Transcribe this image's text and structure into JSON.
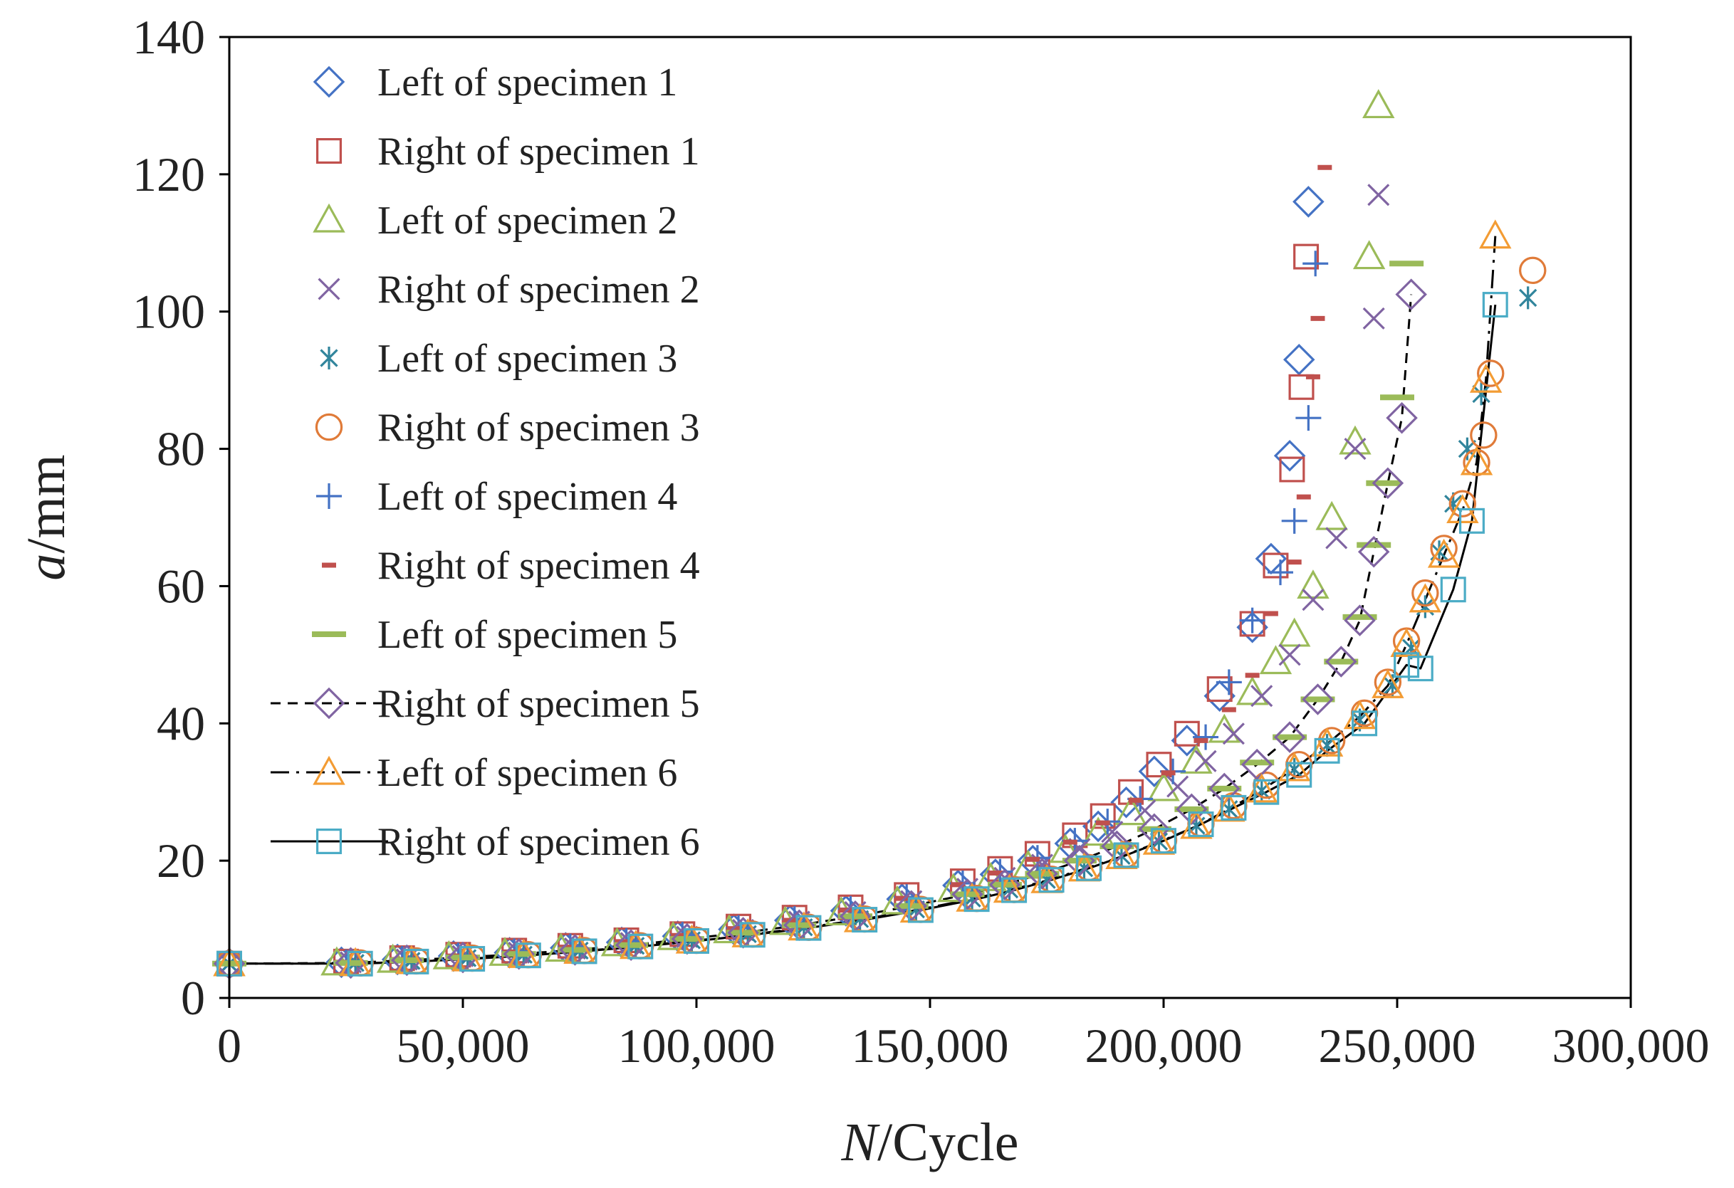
{
  "chart_data": {
    "type": "scatter",
    "title": "",
    "xlabel_italic": "N",
    "xlabel_rest": "/Cycle",
    "ylabel_italic": "a",
    "ylabel_rest": "/mm",
    "xlim": [
      0,
      300000
    ],
    "ylim": [
      0,
      140
    ],
    "xticks": [
      0,
      50000,
      100000,
      150000,
      200000,
      250000,
      300000
    ],
    "xtick_labels": [
      "0",
      "50,000",
      "100,000",
      "150,000",
      "200,000",
      "250,000",
      "300,000"
    ],
    "yticks": [
      0,
      20,
      40,
      60,
      80,
      100,
      120,
      140
    ],
    "ytick_labels": [
      "0",
      "20",
      "40",
      "60",
      "80",
      "100",
      "120",
      "140"
    ],
    "grid": false,
    "legend_position": "top-left",
    "series": [
      {
        "name": "Left of specimen 1",
        "marker": "diamond",
        "color": "#4472C4",
        "line": "none",
        "x": [
          0,
          24000,
          36000,
          48000,
          60000,
          72000,
          84000,
          96000,
          108000,
          120000,
          132000,
          144000,
          156000,
          164000,
          172000,
          180000,
          186000,
          192000,
          198000,
          205000,
          212000,
          219000,
          223000,
          227000,
          229000,
          231000
        ],
        "y": [
          5,
          5.2,
          5.6,
          6.1,
          6.6,
          7.3,
          8.1,
          9,
          10,
          11.3,
          12.7,
          14.4,
          16.4,
          18,
          20,
          22.5,
          25,
          28.5,
          33,
          37.5,
          44,
          54,
          64,
          79,
          93,
          116
        ]
      },
      {
        "name": "Right of specimen 1",
        "marker": "square",
        "color": "#C0504D",
        "line": "none",
        "x": [
          0,
          25000,
          37000,
          49000,
          61000,
          73000,
          85000,
          97000,
          109000,
          121000,
          133000,
          145000,
          157000,
          165000,
          173000,
          181000,
          187000,
          193000,
          199000,
          205000,
          212000,
          219000,
          224000,
          227500,
          229500,
          230500
        ],
        "y": [
          5,
          5.3,
          5.8,
          6.3,
          6.9,
          7.6,
          8.4,
          9.3,
          10.4,
          11.7,
          13.2,
          15,
          17,
          18.8,
          21,
          23.7,
          26.5,
          30,
          34,
          38.5,
          45,
          54.5,
          63,
          77,
          89,
          108
        ]
      },
      {
        "name": "Left of specimen 2",
        "marker": "triangle",
        "color": "#9BBB59",
        "line": "none",
        "x": [
          0,
          23000,
          35000,
          47000,
          59000,
          71000,
          83000,
          95000,
          107000,
          119000,
          131000,
          143000,
          155000,
          163000,
          171000,
          179000,
          186000,
          193000,
          200000,
          207000,
          213000,
          219000,
          224000,
          228000,
          232000,
          236000,
          241000,
          244000,
          246000
        ],
        "y": [
          5,
          5.1,
          5.5,
          6,
          6.5,
          7.1,
          7.9,
          8.8,
          9.8,
          11,
          12.4,
          14,
          15.8,
          17.4,
          19.2,
          21.5,
          24,
          27,
          30.5,
          34.5,
          39,
          44.5,
          49,
          53,
          60,
          70,
          81,
          108,
          130
        ]
      },
      {
        "name": "Right of specimen 2",
        "marker": "x",
        "color": "#8064A2",
        "line": "none",
        "x": [
          0,
          26000,
          38000,
          50000,
          62000,
          74000,
          86000,
          98000,
          110000,
          122000,
          134000,
          146000,
          158000,
          166000,
          174000,
          182000,
          189000,
          196000,
          203000,
          209000,
          215000,
          221000,
          227000,
          232000,
          237000,
          241000,
          245000,
          246000
        ],
        "y": [
          5,
          5.2,
          5.6,
          6.1,
          6.6,
          7.2,
          8,
          8.9,
          9.9,
          11.1,
          12.5,
          14.1,
          15.9,
          17.5,
          19.4,
          21.7,
          24.2,
          27.3,
          30.8,
          34.5,
          38.5,
          44,
          50,
          58,
          67,
          80,
          99,
          117
        ]
      },
      {
        "name": "Left of specimen 3",
        "marker": "asterisk",
        "color": "#31859C",
        "line": "none",
        "x": [
          0,
          27000,
          39000,
          51000,
          63000,
          75000,
          87000,
          99000,
          111000,
          123000,
          135000,
          147000,
          159000,
          167000,
          175000,
          183000,
          191000,
          199000,
          207000,
          214000,
          221000,
          228000,
          235000,
          242000,
          249000,
          253000,
          256000,
          259000,
          262000,
          265000,
          268000,
          278000
        ],
        "y": [
          5,
          5.1,
          5.4,
          5.8,
          6.3,
          6.9,
          7.6,
          8.4,
          9.3,
          10.3,
          11.5,
          12.9,
          14.5,
          15.8,
          17.2,
          18.9,
          20.7,
          22.8,
          25.1,
          27.5,
          30.2,
          33.3,
          36.8,
          40.5,
          45.5,
          51,
          57,
          65,
          72,
          80,
          88,
          102
        ]
      },
      {
        "name": "Right of specimen 3",
        "marker": "circle",
        "color": "#E07B39",
        "line": "none",
        "x": [
          0,
          28000,
          40000,
          52000,
          64000,
          76000,
          88000,
          100000,
          112000,
          124000,
          136000,
          148000,
          160000,
          168000,
          176000,
          184000,
          192000,
          200000,
          208000,
          215000,
          222000,
          229000,
          236000,
          243000,
          248000,
          252000,
          256000,
          260000,
          264000,
          267000,
          268500,
          270000,
          279000
        ],
        "y": [
          5,
          5.1,
          5.4,
          5.8,
          6.3,
          6.9,
          7.6,
          8.4,
          9.3,
          10.3,
          11.5,
          12.9,
          14.5,
          15.8,
          17.3,
          19,
          20.9,
          23,
          25.4,
          28,
          31,
          34,
          37.5,
          41.5,
          46,
          52,
          59,
          65.5,
          72,
          78,
          82,
          91,
          106
        ]
      },
      {
        "name": "Left of specimen 4",
        "marker": "plus",
        "color": "#4472C4",
        "line": "none",
        "x": [
          0,
          25000,
          37000,
          49000,
          61000,
          73000,
          85000,
          97000,
          109000,
          121000,
          133000,
          145000,
          157000,
          165000,
          173000,
          181000,
          188000,
          195000,
          202000,
          209000,
          214000,
          219000,
          225000,
          228000,
          231000,
          232500
        ],
        "y": [
          5,
          5.2,
          5.7,
          6.2,
          6.8,
          7.5,
          8.3,
          9.2,
          10.2,
          11.5,
          13,
          14.7,
          16.7,
          18.4,
          20.4,
          22.9,
          25.7,
          29,
          33,
          38,
          46,
          55,
          62,
          69.5,
          84.5,
          107
        ]
      },
      {
        "name": "Right of specimen 4",
        "marker": "dash-short",
        "color": "#C0504D",
        "line": "none",
        "x": [
          0,
          24000,
          36000,
          48000,
          60000,
          72000,
          84000,
          96000,
          108000,
          120000,
          132000,
          144000,
          156000,
          164000,
          172000,
          180000,
          187000,
          194000,
          201000,
          208000,
          214000,
          219000,
          223000,
          228000,
          230000,
          232000,
          233000,
          234500
        ],
        "y": [
          5,
          5.2,
          5.6,
          6.1,
          6.7,
          7.4,
          8.2,
          9.1,
          10.1,
          11.3,
          12.8,
          14.5,
          16.5,
          18.2,
          20.2,
          22.7,
          25.5,
          28.8,
          32.8,
          37.5,
          42,
          47,
          56,
          63.5,
          73,
          90.5,
          99,
          121
        ]
      },
      {
        "name": "Left of specimen 5",
        "marker": "dash-long",
        "color": "#9BBB59",
        "line": "none",
        "x": [
          0,
          26000,
          38000,
          50000,
          62000,
          74000,
          86000,
          98000,
          110000,
          122000,
          134000,
          146000,
          158000,
          166000,
          174000,
          182000,
          190000,
          198000,
          206000,
          213000,
          220000,
          227000,
          233000,
          238000,
          242000,
          245000,
          247000,
          250000,
          252000
        ],
        "y": [
          5,
          5.1,
          5.5,
          5.9,
          6.4,
          7,
          7.7,
          8.6,
          9.5,
          10.6,
          11.9,
          13.4,
          15.1,
          16.5,
          18.1,
          20,
          22.1,
          24.6,
          27.5,
          30.5,
          34.3,
          38,
          43.5,
          49,
          55.5,
          66,
          75,
          87.5,
          107
        ]
      },
      {
        "name": "Right of specimen 5",
        "marker": "diamond",
        "color": "#8064A2",
        "line": "dashed",
        "x": [
          0,
          26000,
          38000,
          50000,
          62000,
          74000,
          86000,
          98000,
          110000,
          122000,
          134000,
          146000,
          158000,
          166000,
          174000,
          182000,
          190000,
          198000,
          206000,
          213000,
          220000,
          227000,
          233000,
          238000,
          242000,
          245000,
          248000,
          251000,
          253000
        ],
        "y": [
          5,
          5.1,
          5.5,
          5.9,
          6.4,
          7,
          7.7,
          8.6,
          9.5,
          10.6,
          11.9,
          13.4,
          15.1,
          16.5,
          18.1,
          20,
          22.1,
          24.6,
          27.5,
          30.5,
          34,
          38,
          43.5,
          49,
          55,
          65,
          75,
          84.5,
          102.5
        ]
      },
      {
        "name": "Left of specimen 6",
        "marker": "triangle",
        "color": "#F39C34",
        "line": "dashdot",
        "x": [
          0,
          27000,
          39000,
          51000,
          63000,
          75000,
          87000,
          99000,
          111000,
          123000,
          135000,
          147000,
          159000,
          167000,
          175000,
          183000,
          191000,
          199000,
          207000,
          214000,
          221000,
          228000,
          235000,
          242000,
          248000,
          252000,
          256000,
          260000,
          264000,
          267000,
          269000,
          271000
        ],
        "y": [
          5,
          5,
          5.3,
          5.7,
          6.2,
          6.8,
          7.5,
          8.3,
          9.2,
          10.2,
          11.4,
          12.8,
          14.4,
          15.7,
          17.1,
          18.8,
          20.6,
          22.7,
          25,
          27.5,
          30.3,
          33.4,
          37,
          41,
          45.5,
          51.5,
          58,
          64.5,
          71,
          78,
          90,
          111
        ]
      },
      {
        "name": "Right of specimen 6",
        "marker": "square",
        "color": "#4BACC6",
        "line": "solid",
        "x": [
          0,
          28000,
          40000,
          52000,
          64000,
          76000,
          88000,
          100000,
          112000,
          124000,
          136000,
          148000,
          160000,
          168000,
          176000,
          184000,
          192000,
          200000,
          208000,
          215000,
          222000,
          229000,
          235000,
          243000,
          252000,
          255000,
          262000,
          266000,
          271000
        ],
        "y": [
          5,
          5,
          5.3,
          5.7,
          6.2,
          6.8,
          7.5,
          8.3,
          9.2,
          10.2,
          11.4,
          12.8,
          14.4,
          15.7,
          17.2,
          18.9,
          20.8,
          22.9,
          25.3,
          27.7,
          30,
          32.5,
          36,
          40,
          48.5,
          48,
          59.5,
          69.5,
          101
        ]
      }
    ]
  }
}
